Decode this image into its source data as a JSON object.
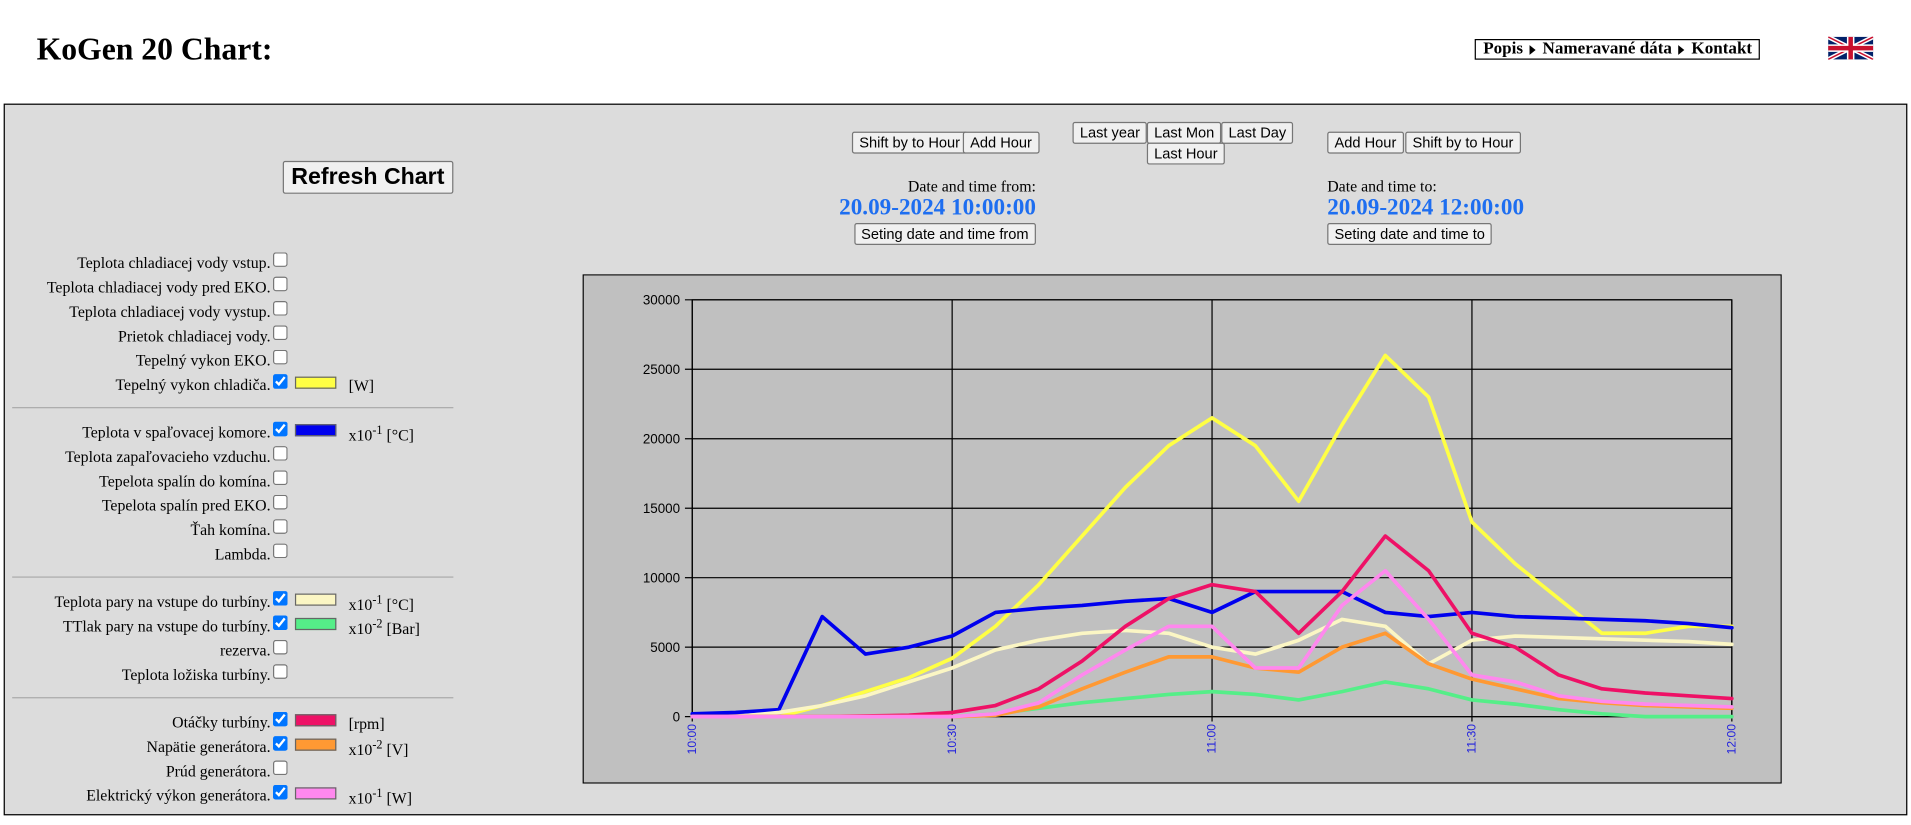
{
  "header": {
    "title": "KoGen 20 Chart:",
    "nav": [
      "Popis",
      "Nameravané dáta",
      "Kontakt"
    ]
  },
  "controls": {
    "refresh": "Refresh Chart",
    "from_buttons": [
      "Shift by to Hour",
      "Add Hour"
    ],
    "range_buttons": [
      "Last year",
      "Last Mon",
      "Last Day",
      "Last Hour"
    ],
    "to_buttons": [
      "Add Hour",
      "Shift by to Hour"
    ],
    "from_label": "Date and time from:",
    "from_value": "20.09-2024 10:00:00",
    "from_set": "Seting date and time from",
    "to_label": "Date and time to:",
    "to_value": "20.09-2024 12:00:00",
    "to_set": "Seting date and time to"
  },
  "sensors": [
    [
      {
        "label": "Teplota chladiacej vody vstup.",
        "checked": false
      },
      {
        "label": "Teplota chladiacej vody pred EKO.",
        "checked": false
      },
      {
        "label": "Teplota chladiacej vody vystup.",
        "checked": false
      },
      {
        "label": "Prietok chladiacej vody.",
        "checked": false
      },
      {
        "label": "Tepelný vykon EKO.",
        "checked": false
      },
      {
        "series": 0,
        "checked": true,
        "unit": {
          "text": "[W]"
        }
      }
    ],
    [
      {
        "series": 1,
        "checked": true,
        "unit": {
          "base": "x10",
          "exp": "-1",
          "text": "[°C]"
        }
      },
      {
        "label": "Teplota zapaľovacieho vzduchu.",
        "checked": false
      },
      {
        "label": "Tepelota spalín do komína.",
        "checked": false
      },
      {
        "label": "Tepelota spalín pred EKO.",
        "checked": false
      },
      {
        "label": "Ťah komína.",
        "checked": false
      },
      {
        "label": "Lambda.",
        "checked": false
      }
    ],
    [
      {
        "series": 2,
        "checked": true,
        "unit": {
          "base": "x10",
          "exp": "-1",
          "text": "[°C]"
        }
      },
      {
        "series": 3,
        "checked": true,
        "unit": {
          "base": "x10",
          "exp": "-2",
          "text": "[Bar]"
        }
      },
      {
        "label": "rezerva.",
        "checked": false
      },
      {
        "label": "Teplota ložiska turbíny.",
        "checked": false
      }
    ],
    [
      {
        "series": 4,
        "checked": true,
        "unit": {
          "text": "[rpm]"
        }
      },
      {
        "series": 5,
        "checked": true,
        "unit": {
          "base": "x10",
          "exp": "-2",
          "text": "[V]"
        }
      },
      {
        "label": "Prúd generátora.",
        "checked": false
      },
      {
        "series": 6,
        "checked": true,
        "unit": {
          "base": "x10",
          "exp": "-1",
          "text": "[W]"
        }
      }
    ]
  ],
  "chart_data": {
    "type": "line",
    "x": [
      0,
      5,
      10,
      15,
      20,
      25,
      30,
      35,
      40,
      45,
      50,
      55,
      60,
      65,
      70,
      75,
      80,
      85,
      90,
      95,
      100,
      105,
      110,
      115,
      120
    ],
    "xlim": [
      0,
      120
    ],
    "xticks": [
      {
        "value": 0,
        "label": "10:00"
      },
      {
        "value": 30,
        "label": "10:30"
      },
      {
        "value": 60,
        "label": "11:00"
      },
      {
        "value": 90,
        "label": "11:30"
      },
      {
        "value": 120,
        "label": "12:00"
      }
    ],
    "ylim": [
      0,
      30000
    ],
    "yticks": [
      0,
      5000,
      10000,
      15000,
      20000,
      25000,
      30000
    ],
    "grid": true,
    "series": [
      {
        "name": "Tepelný vykon chladiča.",
        "color": "#ffff44",
        "values": [
          0,
          0,
          0,
          800,
          1800,
          2800,
          4200,
          6500,
          9500,
          13000,
          16500,
          19500,
          21500,
          19500,
          15500,
          21000,
          26000,
          23000,
          14000,
          11000,
          8500,
          6000,
          6000,
          6500,
          6500
        ]
      },
      {
        "name": "Teplota v spaľovacej komore.",
        "color": "#0000ee",
        "values": [
          200,
          300,
          500,
          7200,
          4500,
          5000,
          5800,
          7500,
          7800,
          8000,
          8300,
          8500,
          7500,
          9000,
          9000,
          9000,
          7500,
          7200,
          7500,
          7200,
          7100,
          7000,
          6900,
          6700,
          6400
        ]
      },
      {
        "name": "Teplota pary na vstupe do turbíny.",
        "color": "#fbf6c4",
        "values": [
          0,
          0,
          300,
          800,
          1500,
          2500,
          3500,
          4800,
          5500,
          6000,
          6200,
          6000,
          5000,
          4500,
          5500,
          7000,
          6500,
          3800,
          5500,
          5800,
          5700,
          5600,
          5500,
          5400,
          5200
        ]
      },
      {
        "name": "TTlak pary na vstupe do turbíny.",
        "color": "#55ee88",
        "values": [
          0,
          0,
          0,
          0,
          0,
          0,
          0,
          200,
          600,
          1000,
          1300,
          1600,
          1800,
          1600,
          1200,
          1800,
          2500,
          2000,
          1200,
          900,
          500,
          200,
          0,
          0,
          0
        ]
      },
      {
        "name": "Otáčky turbíny.",
        "color": "#ee1166",
        "values": [
          0,
          0,
          0,
          0,
          50,
          100,
          300,
          800,
          2000,
          4000,
          6500,
          8500,
          9500,
          9000,
          6000,
          9000,
          13000,
          10500,
          6000,
          5000,
          3000,
          2000,
          1700,
          1500,
          1300
        ]
      },
      {
        "name": "Napätie generátora.",
        "color": "#ff9933",
        "values": [
          0,
          0,
          0,
          0,
          0,
          0,
          0,
          100,
          700,
          2000,
          3200,
          4300,
          4300,
          3500,
          3200,
          5000,
          6000,
          3800,
          2700,
          2000,
          1300,
          1000,
          800,
          700,
          600
        ]
      },
      {
        "name": "Elektrický výkon generátora.",
        "color": "#ff88ee",
        "values": [
          0,
          0,
          0,
          0,
          0,
          0,
          0,
          200,
          1000,
          3000,
          4800,
          6500,
          6500,
          3500,
          3500,
          8000,
          10500,
          7000,
          3000,
          2500,
          1500,
          1100,
          900,
          800,
          700
        ]
      }
    ]
  }
}
